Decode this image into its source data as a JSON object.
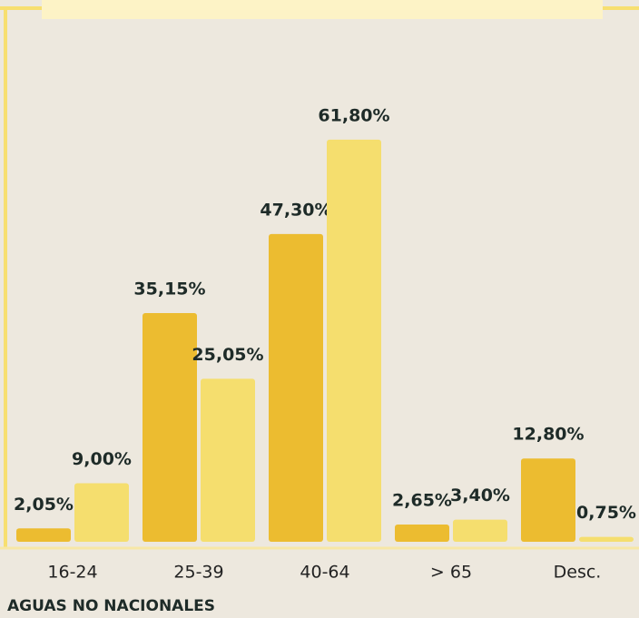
{
  "chart_data": {
    "type": "bar",
    "categories": [
      "16-24",
      "25-39",
      "40-64",
      "> 65",
      "Desc."
    ],
    "series": [
      {
        "color": "#ecbc30",
        "values": [
          2.05,
          35.15,
          47.3,
          2.65,
          12.8
        ],
        "value_labels": [
          "2,05%",
          "35,15%",
          "47,30%",
          "2,65%",
          "12,80%"
        ]
      },
      {
        "color": "#f5de6e",
        "values": [
          9.0,
          25.05,
          61.8,
          3.4,
          0.75
        ],
        "value_labels": [
          "9,00%",
          "25,05%",
          "61,80%",
          "3,40%",
          "0,75%"
        ]
      }
    ],
    "annotation": "AGUAS NO NACIONALES"
  }
}
